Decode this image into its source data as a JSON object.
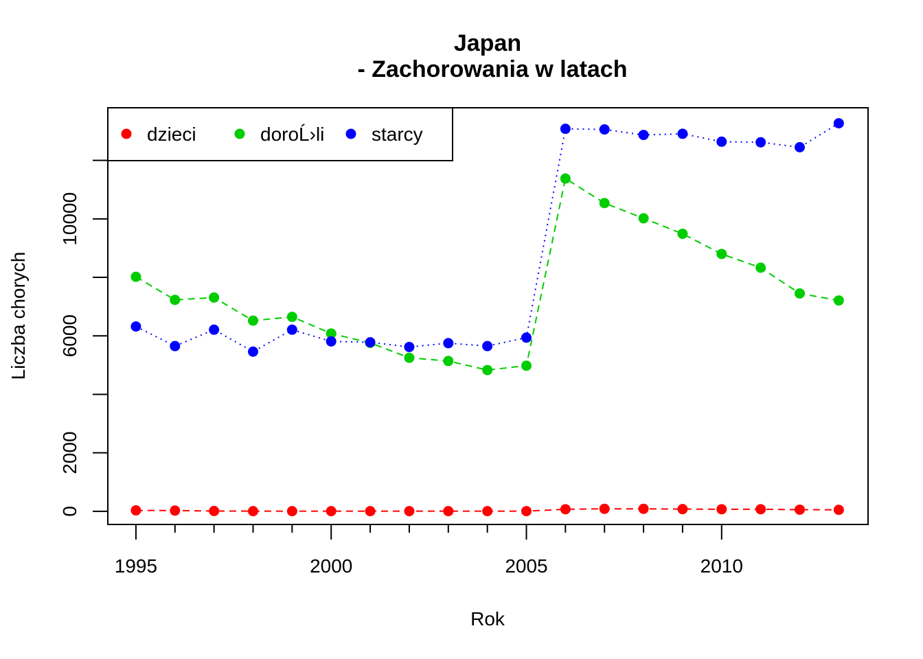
{
  "chart_data": {
    "type": "line",
    "title_line1": "Japan",
    "title_line2": "- Zachorowania w latach",
    "xlabel": "Rok",
    "ylabel": "Liczba chorych",
    "x": [
      1995,
      1996,
      1997,
      1998,
      1999,
      2000,
      2001,
      2002,
      2003,
      2004,
      2005,
      2006,
      2007,
      2008,
      2009,
      2010,
      2011,
      2012,
      2013
    ],
    "x_ticks": [
      "1995",
      "2000",
      "2005",
      "2010"
    ],
    "y_ticks": [
      "0",
      "2000",
      "6000",
      "10000"
    ],
    "xlim": [
      1994.28,
      2013.75
    ],
    "ylim": [
      -450,
      13800
    ],
    "grid": false,
    "legend_position": "top-left",
    "series": [
      {
        "name": "dzieci",
        "color": "#ff0000",
        "line_style": "dashed",
        "values": [
          30,
          25,
          10,
          5,
          5,
          5,
          5,
          5,
          5,
          5,
          5,
          70,
          85,
          85,
          75,
          70,
          70,
          55,
          50
        ]
      },
      {
        "name": "doroĹ›li",
        "color": "#00cd00",
        "line_style": "dashed",
        "values": [
          8020,
          7230,
          7310,
          6520,
          6650,
          6080,
          5760,
          5250,
          5140,
          4830,
          4980,
          11380,
          10540,
          10020,
          9490,
          8800,
          8330,
          7450,
          7210
        ]
      },
      {
        "name": "starcy",
        "color": "#0000ff",
        "line_style": "dotted",
        "values": [
          6320,
          5650,
          6210,
          5460,
          6210,
          5810,
          5780,
          5620,
          5750,
          5650,
          5940,
          13080,
          13060,
          12870,
          12910,
          12640,
          12620,
          12450,
          13270
        ]
      }
    ]
  }
}
